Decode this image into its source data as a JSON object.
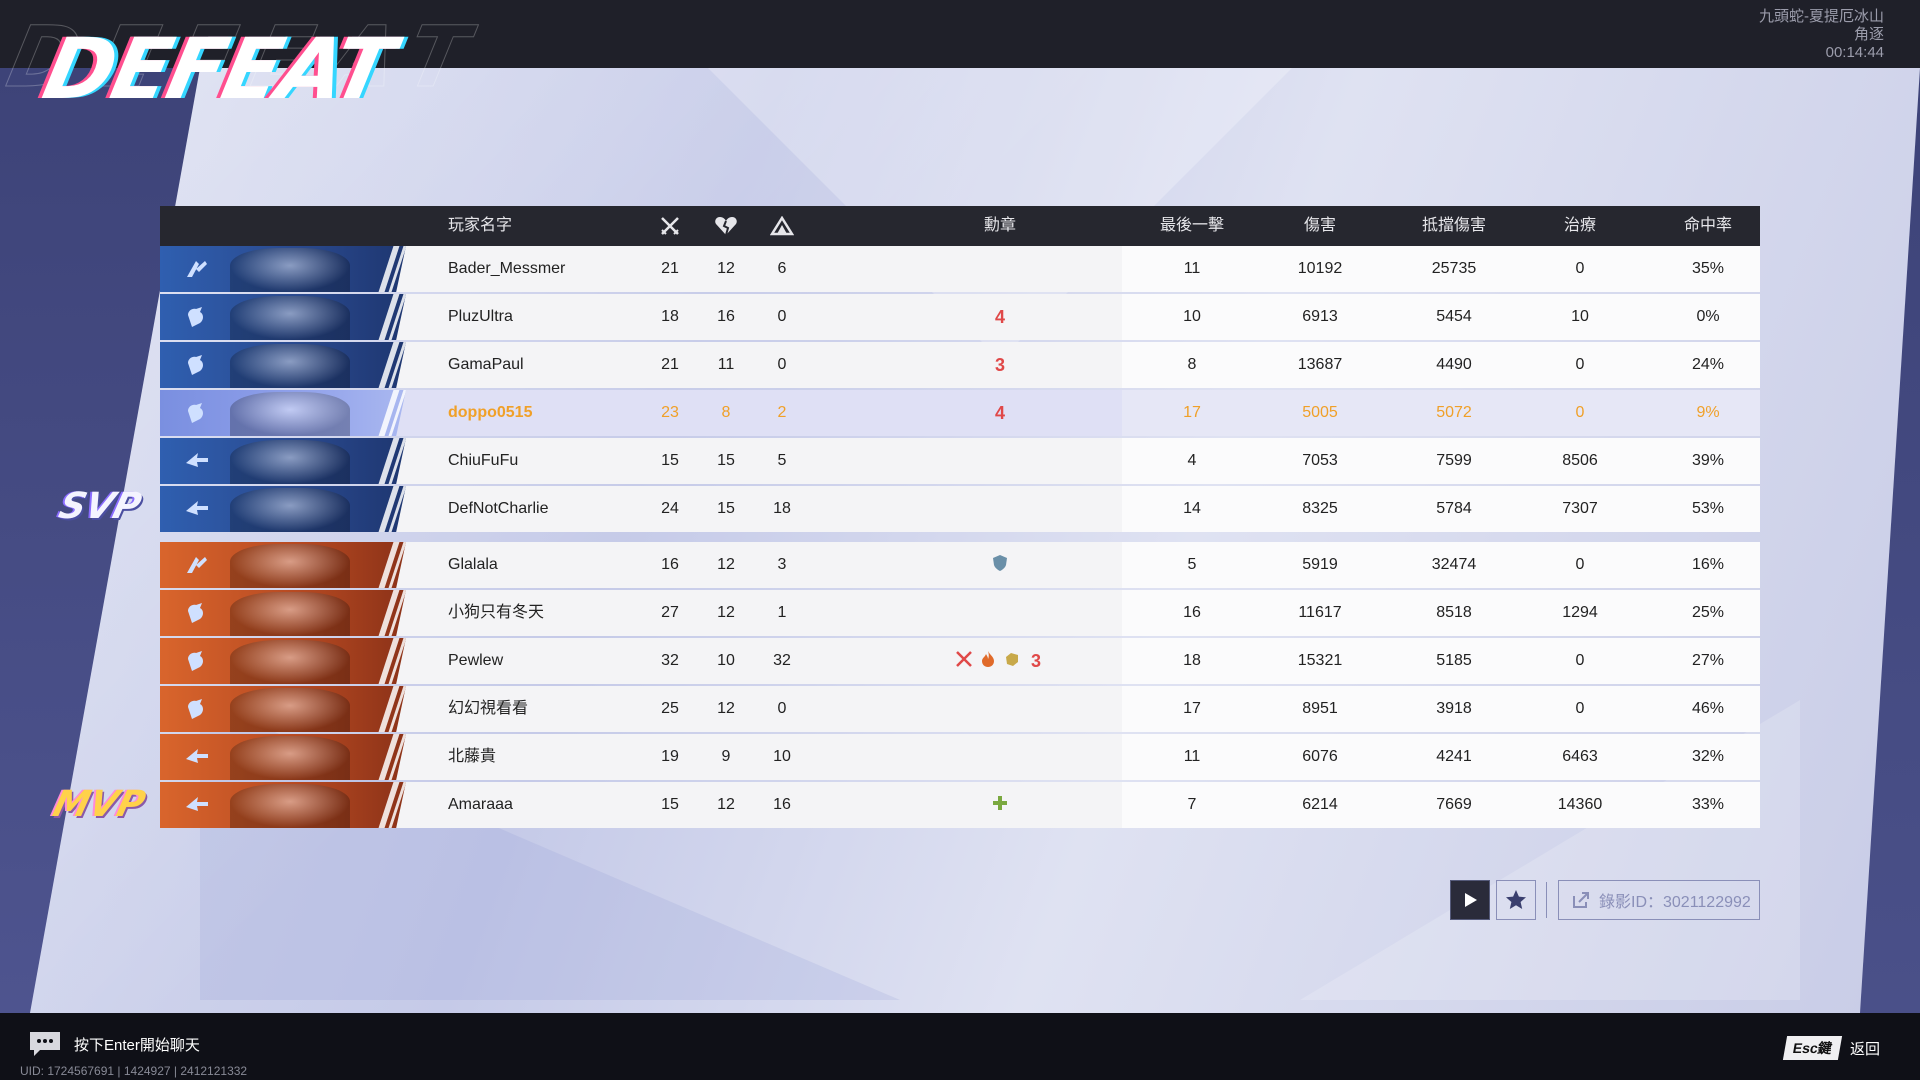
{
  "header": {
    "result": "DEFEAT",
    "map": "九頭蛇-夏提厄冰山",
    "mode": "角逐",
    "time": "00:14:44"
  },
  "columns": {
    "name": "玩家名字",
    "kills_icon": "crossed-swords-icon",
    "deaths_icon": "broken-heart-icon",
    "assists_icon": "assist-icon",
    "medals": "勳章",
    "final_blows": "最後一擊",
    "damage": "傷害",
    "blocked": "抵擋傷害",
    "healing": "治療",
    "accuracy": "命中率"
  },
  "team_blue": [
    {
      "role": "vanguard",
      "name": "Bader_Messmer",
      "k": "21",
      "d": "12",
      "a": "6",
      "medals": [],
      "fb": "11",
      "dmg": "10192",
      "blk": "25735",
      "heal": "0",
      "acc": "35%"
    },
    {
      "role": "duelist",
      "name": "PluzUltra",
      "k": "18",
      "d": "16",
      "a": "0",
      "medals": [
        "4"
      ],
      "fb": "10",
      "dmg": "6913",
      "blk": "5454",
      "heal": "10",
      "acc": "0%"
    },
    {
      "role": "duelist",
      "name": "GamaPaul",
      "k": "21",
      "d": "11",
      "a": "0",
      "medals": [
        "3"
      ],
      "fb": "8",
      "dmg": "13687",
      "blk": "4490",
      "heal": "0",
      "acc": "24%"
    },
    {
      "role": "duelist",
      "name": "doppo0515",
      "k": "23",
      "d": "8",
      "a": "2",
      "medals": [
        "4"
      ],
      "fb": "17",
      "dmg": "5005",
      "blk": "5072",
      "heal": "0",
      "acc": "9%",
      "me": true
    },
    {
      "role": "strategist",
      "name": "ChiuFuFu",
      "k": "15",
      "d": "15",
      "a": "5",
      "medals": [],
      "fb": "4",
      "dmg": "7053",
      "blk": "7599",
      "heal": "8506",
      "acc": "39%"
    },
    {
      "role": "strategist",
      "name": "DefNotCharlie",
      "k": "24",
      "d": "15",
      "a": "18",
      "medals": [],
      "fb": "14",
      "dmg": "8325",
      "blk": "5784",
      "heal": "7307",
      "acc": "53%"
    }
  ],
  "team_orange": [
    {
      "role": "vanguard",
      "name": "Glalala",
      "k": "16",
      "d": "12",
      "a": "3",
      "medals": [
        "shield"
      ],
      "fb": "5",
      "dmg": "5919",
      "blk": "32474",
      "heal": "0",
      "acc": "16%"
    },
    {
      "role": "duelist",
      "name": "小狗只有冬天",
      "k": "27",
      "d": "12",
      "a": "1",
      "medals": [],
      "fb": "16",
      "dmg": "11617",
      "blk": "8518",
      "heal": "1294",
      "acc": "25%"
    },
    {
      "role": "duelist",
      "name": "Pewlew",
      "k": "32",
      "d": "10",
      "a": "32",
      "medals": [
        "swords",
        "fire",
        "fist",
        "3"
      ],
      "fb": "18",
      "dmg": "15321",
      "blk": "5185",
      "heal": "0",
      "acc": "27%"
    },
    {
      "role": "duelist",
      "name": "幻幻視看看",
      "k": "25",
      "d": "12",
      "a": "0",
      "medals": [],
      "fb": "17",
      "dmg": "8951",
      "blk": "3918",
      "heal": "0",
      "acc": "46%"
    },
    {
      "role": "strategist",
      "name": "北藤貴",
      "k": "19",
      "d": "9",
      "a": "10",
      "medals": [],
      "fb": "11",
      "dmg": "6076",
      "blk": "4241",
      "heal": "6463",
      "acc": "32%"
    },
    {
      "role": "strategist",
      "name": "Amaraaa",
      "k": "15",
      "d": "12",
      "a": "16",
      "medals": [
        "plus"
      ],
      "fb": "7",
      "dmg": "6214",
      "blk": "7669",
      "heal": "14360",
      "acc": "33%"
    }
  ],
  "badges": {
    "svp": "SVP",
    "mvp": "MVP"
  },
  "controls": {
    "replay_label": "錄影ID：3021122992"
  },
  "footer": {
    "chat_hint": "按下Enter開始聊天",
    "uid": "UID: 1724567691 | 1424927 | 2412121332",
    "esc_key": "Esc鍵",
    "back": "返回"
  },
  "colors": {
    "blue_team": "#2f5fb0",
    "orange_team": "#d9652c",
    "self_highlight": "#f0a028",
    "medal_red": "#e04848"
  }
}
